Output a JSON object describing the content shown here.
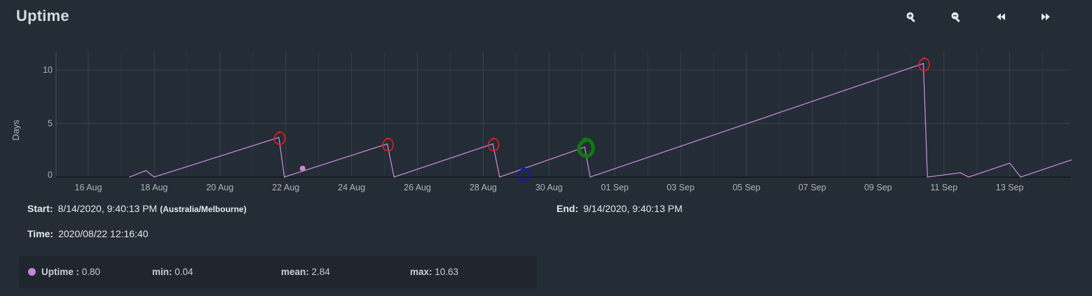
{
  "title": "Uptime",
  "toolbar": {
    "icons": [
      "zoom-in-icon",
      "zoom-out-icon",
      "rewind-icon",
      "fast-forward-icon"
    ]
  },
  "chart_data": {
    "type": "line",
    "ylabel": "Days",
    "xlabel": "",
    "y_ticks": [
      0,
      5,
      10
    ],
    "ylim": [
      0,
      11
    ],
    "x_ticks": [
      "16 Aug",
      "18 Aug",
      "20 Aug",
      "22 Aug",
      "24 Aug",
      "26 Aug",
      "28 Aug",
      "30 Aug",
      "01 Sep",
      "03 Sep",
      "05 Sep",
      "07 Sep",
      "09 Sep",
      "11 Sep",
      "13 Sep"
    ],
    "grid": true,
    "line_color": "#c586d6",
    "series": [
      {
        "name": "Uptime",
        "points": [
          [
            "2020-08-17 06:00",
            0.0
          ],
          [
            "2020-08-17 18:00",
            0.6
          ],
          [
            "2020-08-18 00:00",
            0.0
          ],
          [
            "2020-08-21 19:00",
            3.7
          ],
          [
            "2020-08-21 23:00",
            0.0
          ],
          [
            "2020-08-25 02:00",
            3.1
          ],
          [
            "2020-08-25 07:00",
            0.0
          ],
          [
            "2020-08-28 07:00",
            3.1
          ],
          [
            "2020-08-28 12:00",
            0.0
          ],
          [
            "2020-08-31 02:00",
            2.8
          ],
          [
            "2020-08-31 06:00",
            0.0
          ],
          [
            "2020-09-10 09:00",
            10.6
          ],
          [
            "2020-09-10 12:00",
            0.0
          ],
          [
            "2020-09-11 12:00",
            0.4
          ],
          [
            "2020-09-11 18:00",
            0.0
          ],
          [
            "2020-09-13 00:00",
            1.3
          ],
          [
            "2020-09-13 08:00",
            0.0
          ],
          [
            "2020-09-14 21:00",
            1.6
          ]
        ]
      }
    ],
    "cursor_point": [
      "2020-08-22 12:16",
      0.8
    ],
    "annotations": [
      {
        "date": "2020-08-21 19:00",
        "value": 3.7,
        "color": "#e02020",
        "style": "scribble"
      },
      {
        "date": "2020-08-25 02:00",
        "value": 3.1,
        "color": "#e02020",
        "style": "scribble"
      },
      {
        "date": "2020-08-28 07:00",
        "value": 3.1,
        "color": "#e02020",
        "style": "scribble"
      },
      {
        "date": "2020-08-29 05:00",
        "value": 0.3,
        "color": "#1010d0",
        "style": "scribble"
      },
      {
        "date": "2020-08-31 03:00",
        "value": 2.8,
        "color": "#0d7a10",
        "style": "bold-scribble"
      },
      {
        "date": "2020-09-10 09:00",
        "value": 10.6,
        "color": "#e02020",
        "style": "scribble"
      }
    ]
  },
  "info": {
    "start_label": "Start:",
    "start_value": "8/14/2020, 9:40:13 PM",
    "start_tz": "(Australia/Melbourne)",
    "end_label": "End:",
    "end_value": "9/14/2020, 9:40:13 PM",
    "time_label": "Time:",
    "time_value": "2020/08/22 12:16:40"
  },
  "legend": {
    "series_label": "Uptime :",
    "series_value": "0.80",
    "min_label": "min:",
    "min_value": "0.04",
    "mean_label": "mean:",
    "mean_value": "2.84",
    "max_label": "max:",
    "max_value": "10.63",
    "color": "#c586d6"
  }
}
